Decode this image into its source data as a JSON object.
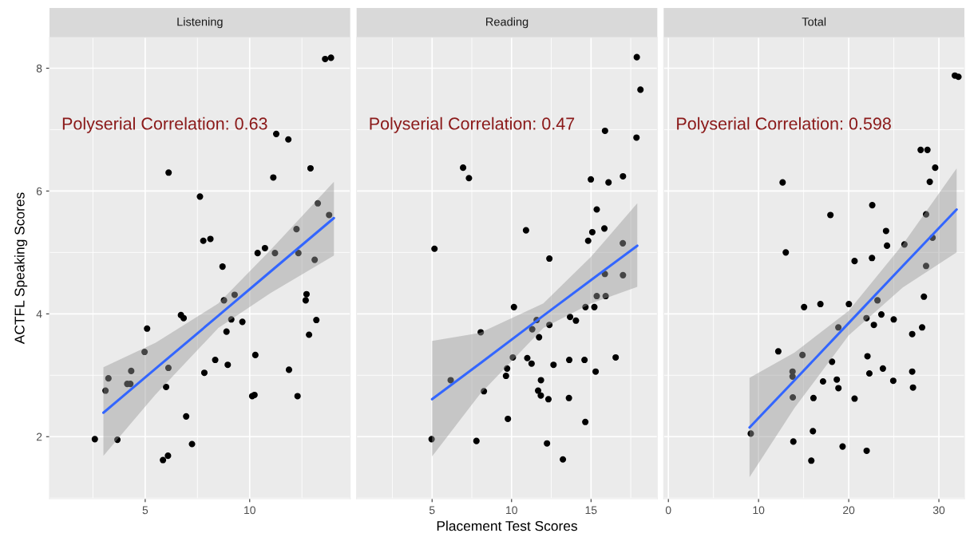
{
  "chart_data": [
    {
      "type": "scatter",
      "title": "Listening",
      "ylabel": "ACTFL Speaking Scores",
      "xlim": [
        0.42,
        14.81
      ],
      "ylim": [
        0.99,
        8.5
      ],
      "xticks": [
        5,
        10
      ],
      "yticks": [
        2,
        4,
        6,
        8
      ],
      "grid": true,
      "annotations": [
        "Polyserial Correlation: 0.63"
      ],
      "series": [
        {
          "marker": "circle",
          "color": "#000000",
          "x": [
            2.59,
            3.67,
            3.1,
            3.24,
            4.14,
            4.29,
            4.33,
            4.97,
            5.09,
            5.85,
            6.09,
            6.0,
            6.11,
            6.71,
            6.84,
            6.96,
            7.24,
            7.83,
            8.35,
            8.7,
            8.77,
            8.95,
            8.89,
            9.28,
            9.12,
            9.65,
            10.27,
            10.12,
            10.23,
            11.88,
            12.29,
            12.72,
            12.68,
            13.19,
            12.84,
            13.61,
            13.89,
            11.27,
            11.85,
            6.12,
            12.91,
            11.13,
            7.62,
            7.78,
            8.12,
            13.26,
            13.8,
            12.24,
            10.38,
            10.73,
            11.21,
            12.33,
            13.11
          ],
          "values": [
            1.96,
            1.95,
            2.75,
            2.95,
            2.86,
            2.86,
            3.07,
            3.38,
            3.76,
            1.62,
            1.69,
            2.81,
            3.12,
            3.98,
            3.93,
            2.33,
            1.88,
            3.04,
            3.25,
            4.77,
            4.22,
            3.17,
            3.71,
            4.31,
            3.91,
            3.87,
            3.33,
            2.66,
            2.68,
            3.09,
            2.66,
            4.32,
            4.22,
            3.9,
            3.66,
            8.15,
            8.17,
            6.93,
            6.84,
            6.3,
            6.37,
            6.22,
            5.91,
            5.19,
            5.22,
            5.8,
            5.61,
            5.38,
            4.99,
            5.07,
            4.99,
            4.99,
            4.88
          ]
        },
        {
          "type": "line",
          "color": "#3366ff",
          "x": [
            3.0,
            5.5,
            8.5,
            11,
            14.03
          ],
          "values": [
            2.39,
            3.11,
            3.97,
            4.69,
            5.56
          ],
          "lower": [
            1.69,
            2.69,
            3.77,
            4.34,
            4.95
          ],
          "upper": [
            3.13,
            3.53,
            4.17,
            5.04,
            6.15
          ]
        }
      ]
    },
    {
      "type": "scatter",
      "title": "Reading",
      "xlabel": "Placement Test Scores",
      "xlim": [
        0.25,
        19.17
      ],
      "ylim": [
        0.99,
        8.5
      ],
      "xticks": [
        5,
        10,
        15
      ],
      "yticks": [
        2,
        4,
        6,
        8
      ],
      "grid": true,
      "tick_labels": "x",
      "annotations": [
        "Polyserial Correlation: 0.47"
      ],
      "series": [
        {
          "marker": "circle",
          "color": "#000000",
          "x": [
            17.88,
            18.11,
            15.88,
            17.86,
            6.95,
            7.32,
            14.99,
            16.1,
            17.01,
            15.36,
            10.91,
            15.08,
            15.84,
            14.82,
            17.0,
            5.15,
            12.38,
            15.87,
            17.01,
            15.36,
            15.92,
            10.15,
            14.65,
            15.21,
            11.58,
            13.68,
            14.05,
            12.38,
            11.3,
            11.73,
            8.06,
            10.08,
            10.99,
            11.26,
            12.64,
            13.63,
            14.59,
            16.55,
            15.29,
            9.72,
            9.65,
            6.17,
            8.26,
            11.85,
            11.67,
            11.84,
            12.32,
            13.61,
            9.77,
            14.64,
            4.97,
            7.79,
            12.23,
            13.23
          ],
          "values": [
            8.18,
            7.65,
            6.98,
            6.87,
            6.38,
            6.21,
            6.19,
            6.14,
            6.24,
            5.7,
            5.36,
            5.33,
            5.39,
            5.19,
            5.15,
            5.06,
            4.9,
            4.65,
            4.63,
            4.29,
            4.29,
            4.11,
            4.11,
            4.11,
            3.9,
            3.95,
            3.89,
            3.82,
            3.75,
            3.62,
            3.7,
            3.29,
            3.28,
            3.19,
            3.17,
            3.25,
            3.25,
            3.29,
            3.06,
            3.11,
            2.99,
            2.92,
            2.74,
            2.92,
            2.75,
            2.67,
            2.61,
            2.63,
            2.29,
            2.24,
            1.96,
            1.93,
            1.89,
            1.63
          ]
        },
        {
          "type": "line",
          "color": "#3366ff",
          "x": [
            5,
            8,
            12,
            15,
            17.91
          ],
          "values": [
            2.61,
            3.19,
            3.97,
            4.55,
            5.11
          ],
          "lower": [
            1.68,
            2.69,
            3.77,
            4.17,
            4.44
          ],
          "upper": [
            3.56,
            3.69,
            4.17,
            4.93,
            5.8
          ]
        }
      ]
    },
    {
      "type": "scatter",
      "title": "Total",
      "xlim": [
        -0.52,
        32.83
      ],
      "ylim": [
        0.99,
        8.5
      ],
      "xticks": [
        0,
        10,
        20,
        30
      ],
      "yticks": [
        2,
        4,
        6,
        8
      ],
      "grid": true,
      "tick_labels": "x",
      "annotations": [
        "Polyserial Correlation: 0.598"
      ],
      "series": [
        {
          "marker": "circle",
          "color": "#000000",
          "x": [
            31.77,
            32.17,
            27.98,
            28.73,
            29.59,
            28.99,
            12.67,
            22.61,
            17.97,
            28.58,
            24.14,
            29.26,
            29.3,
            24.25,
            26.18,
            13.02,
            20.65,
            22.58,
            28.58,
            28.34,
            15.05,
            16.86,
            20.02,
            23.19,
            21.97,
            23.62,
            22.79,
            24.99,
            18.85,
            28.14,
            27.04,
            12.19,
            14.87,
            18.15,
            22.08,
            13.77,
            13.77,
            17.15,
            18.68,
            18.86,
            22.29,
            23.79,
            24.94,
            27.04,
            27.13,
            13.8,
            16.09,
            20.65,
            16.03,
            13.86,
            19.32,
            21.99,
            15.85,
            9.14
          ],
          "values": [
            7.88,
            7.86,
            6.67,
            6.67,
            6.38,
            6.15,
            6.14,
            5.77,
            5.61,
            5.62,
            5.35,
            null,
            5.24,
            5.11,
            5.13,
            5.0,
            4.86,
            4.91,
            4.78,
            4.28,
            4.11,
            4.16,
            4.16,
            4.22,
            3.93,
            3.99,
            3.82,
            3.91,
            3.78,
            3.78,
            3.67,
            3.39,
            3.33,
            3.22,
            3.31,
            3.06,
            2.98,
            2.9,
            2.93,
            2.79,
            3.03,
            3.11,
            2.91,
            3.06,
            2.8,
            2.64,
            2.63,
            2.62,
            2.09,
            1.92,
            1.84,
            1.77,
            1.61,
            2.05
          ]
        },
        {
          "type": "line",
          "color": "#3366ff",
          "x": [
            9,
            14,
            20,
            26,
            31.97
          ],
          "values": [
            2.15,
            2.92,
            3.85,
            4.78,
            5.7
          ],
          "lower": [
            1.34,
            2.47,
            3.65,
            4.43,
            5.0
          ],
          "upper": [
            2.96,
            3.37,
            4.05,
            5.13,
            6.37
          ]
        }
      ]
    }
  ]
}
